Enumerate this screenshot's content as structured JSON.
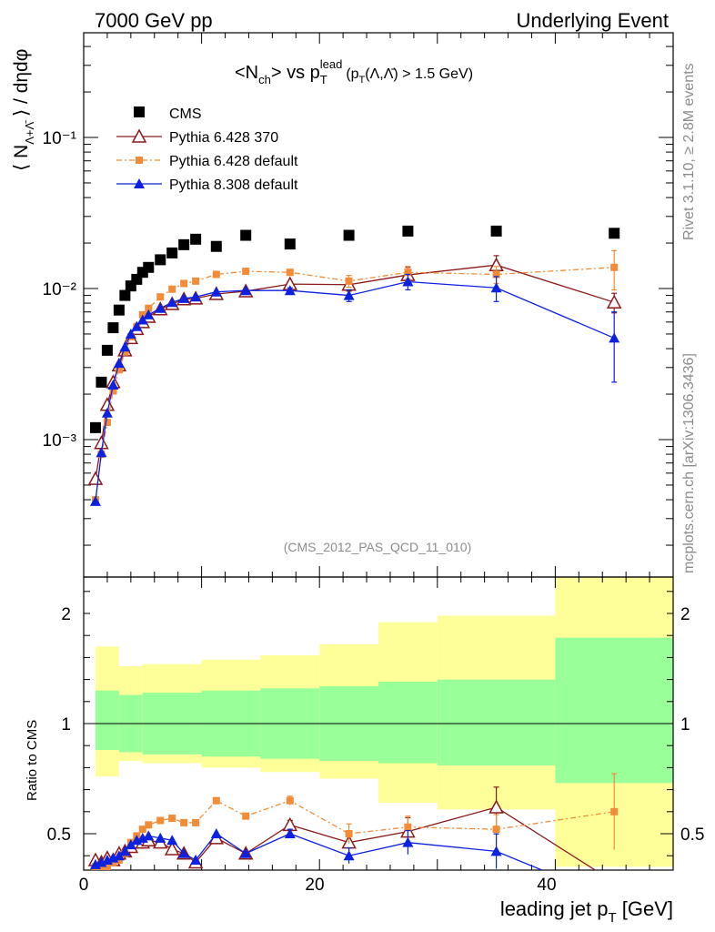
{
  "header": {
    "left": "7000 GeV pp",
    "right": "Underlying Event"
  },
  "side_labels": {
    "rivet": "Rivet 3.1.10, ≥ 2.8M events",
    "mcplots": "mcplots.cern.ch [arXiv:1306.3436]"
  },
  "chart_data": {
    "type": "scatter",
    "title": "<N_ch> vs p_T^lead (p_T(Λ,Λ̄) > 1.5 GeV)",
    "title_parts": {
      "n": "<N",
      "n_sub": "ch",
      "vs": "> vs p",
      "p_sub": "T",
      "p_sup": "lead",
      "cut_pre": "(p",
      "cut_sub": "T",
      "cut_post": "(Λ,Λ̄) > 1.5 GeV)"
    },
    "watermark": "(CMS_2012_PAS_QCD_11_010)",
    "xlabel": "leading jet p_T [GeV]",
    "xlabel_parts": {
      "main": "leading jet p",
      "sub": "T",
      "unit": " [GeV]"
    },
    "ylabel": "⟨ N_{Λ+Λ̄} ⟩ / dηdφ",
    "ylabel_parts": {
      "pre": "⟨ N",
      "sub": "Λ+Λ̄",
      "post": " ⟩ / dηdφ"
    },
    "ratio_ylabel": "Ratio to CMS",
    "xlim": [
      0,
      50
    ],
    "ylim": [
      0.00014,
      0.6
    ],
    "ylog": true,
    "ratio_ylim": [
      0.35,
      2.3
    ],
    "x_ticks": [
      "0",
      "20",
      "40"
    ],
    "y_ticks": [
      "10⁻³",
      "10⁻²",
      "10⁻¹"
    ],
    "ratio_ticks": [
      "0.5",
      "1",
      "2"
    ],
    "legend_position": "top-left",
    "x": [
      1.0,
      1.5,
      2.0,
      2.5,
      3.0,
      3.5,
      4.0,
      4.5,
      5.0,
      5.5,
      6.5,
      7.5,
      8.5,
      9.5,
      11.25,
      13.75,
      17.5,
      22.5,
      27.5,
      35.0,
      45.0
    ],
    "series": [
      {
        "name": "CMS",
        "color": "#000000",
        "marker": "square",
        "values": [
          0.0012,
          0.0024,
          0.0039,
          0.0055,
          0.0072,
          0.009,
          0.0104,
          0.0115,
          0.0128,
          0.0138,
          0.0155,
          0.0172,
          0.0195,
          0.0212,
          0.019,
          0.0225,
          0.0197,
          0.0225,
          0.024,
          0.024,
          0.0232
        ],
        "band_x": [
          1,
          3,
          5,
          10,
          15,
          20,
          25,
          30,
          40,
          50
        ],
        "band_green": [
          [
            0.88,
            1.15
          ],
          [
            0.87,
            1.13
          ],
          [
            0.86,
            1.14
          ],
          [
            0.85,
            1.15
          ],
          [
            0.84,
            1.16
          ],
          [
            0.83,
            1.17
          ],
          [
            0.82,
            1.19
          ],
          [
            0.81,
            1.2
          ],
          [
            0.73,
            1.39
          ]
        ],
        "band_yellow": [
          [
            0.76,
            1.35
          ],
          [
            0.83,
            1.26
          ],
          [
            0.82,
            1.27
          ],
          [
            0.8,
            1.29
          ],
          [
            0.78,
            1.31
          ],
          [
            0.75,
            1.36
          ],
          [
            0.64,
            1.46
          ],
          [
            0.61,
            1.49
          ],
          [
            0.35,
            1.68
          ]
        ]
      },
      {
        "name": "Pythia 6.428 370",
        "color": "#8b1a1a",
        "marker": "open-triangle",
        "values": [
          0.00055,
          0.00095,
          0.0017,
          0.0024,
          0.0031,
          0.0039,
          0.0047,
          0.0054,
          0.006,
          0.0065,
          0.0073,
          0.0079,
          0.0085,
          0.0086,
          0.0092,
          0.0096,
          0.0107,
          0.0106,
          0.0123,
          0.0143,
          0.0081
        ],
        "ratio": [
          0.38,
          0.37,
          0.39,
          0.38,
          0.41,
          0.42,
          0.44,
          0.46,
          0.46,
          0.47,
          0.46,
          0.43,
          0.41,
          0.37,
          0.48,
          0.41,
          0.54,
          0.46,
          0.51,
          0.62,
          0.28
        ],
        "errors": [
          0,
          0,
          0,
          0,
          0,
          0,
          0,
          0,
          0,
          0,
          0,
          0,
          0,
          0,
          0,
          0,
          0.0004,
          0.001,
          0.0015,
          0.0022,
          0.0012
        ]
      },
      {
        "name": "Pythia 6.428 default",
        "color": "#f28c38",
        "marker": "square",
        "values": [
          0.0004,
          0.0008,
          0.0013,
          0.0021,
          0.0029,
          0.0038,
          0.0048,
          0.0056,
          0.0067,
          0.0074,
          0.0088,
          0.0099,
          0.0108,
          0.0112,
          0.0124,
          0.013,
          0.0128,
          0.0112,
          0.0128,
          0.0124,
          0.0138
        ],
        "ratio": [
          0.35,
          0.34,
          0.35,
          0.37,
          0.38,
          0.41,
          0.46,
          0.49,
          0.52,
          0.54,
          0.56,
          0.57,
          0.55,
          0.55,
          0.65,
          0.58,
          0.65,
          0.5,
          0.53,
          0.52,
          0.6
        ],
        "errors": [
          0,
          0,
          0,
          0,
          0,
          0,
          0,
          0,
          0,
          0,
          0,
          0,
          0,
          0,
          0,
          0,
          0.0004,
          0.001,
          0.0012,
          0.0016,
          0.004
        ]
      },
      {
        "name": "Pythia 8.308 default",
        "color": "#0d21e0",
        "marker": "triangle",
        "values": [
          0.00039,
          0.00082,
          0.0015,
          0.0023,
          0.0032,
          0.0041,
          0.005,
          0.0056,
          0.0062,
          0.0067,
          0.0074,
          0.0081,
          0.0086,
          0.0088,
          0.0095,
          0.0097,
          0.0097,
          0.009,
          0.0111,
          0.0101,
          0.0047
        ],
        "ratio": [
          0.36,
          0.37,
          0.38,
          0.39,
          0.4,
          0.42,
          0.45,
          0.47,
          0.48,
          0.49,
          0.48,
          0.47,
          0.41,
          0.38,
          0.5,
          0.41,
          0.5,
          0.4,
          0.46,
          0.42,
          0.2
        ],
        "errors": [
          0,
          0,
          0,
          0,
          0,
          0,
          0,
          0,
          0,
          0,
          0,
          0,
          0,
          0,
          0,
          0,
          0.0004,
          0.0008,
          0.0013,
          0.0019,
          0.0023
        ]
      }
    ]
  }
}
